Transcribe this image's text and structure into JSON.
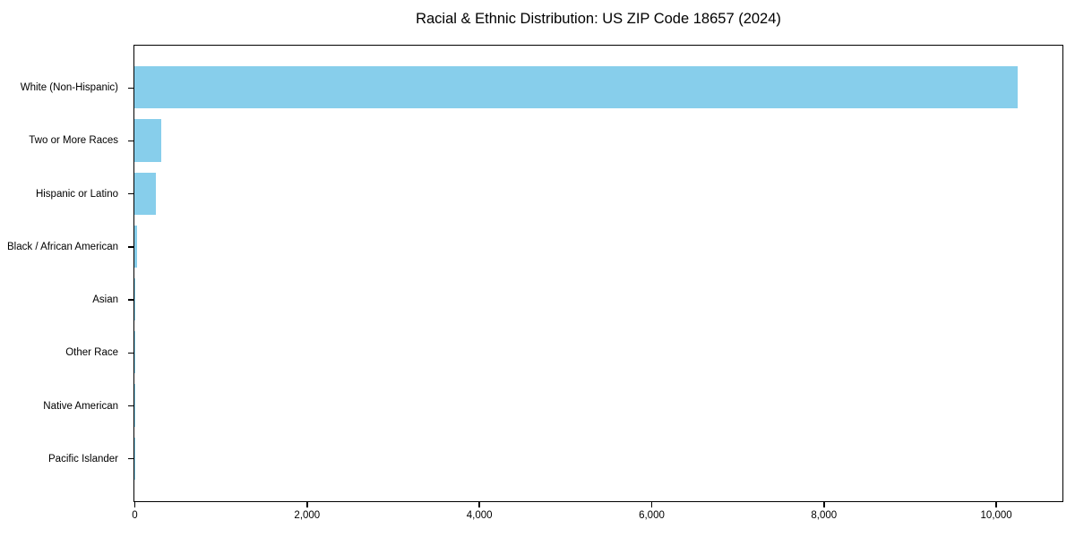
{
  "chart_data": {
    "type": "bar",
    "orientation": "horizontal",
    "title": "Racial & Ethnic Distribution: US ZIP Code 18657 (2024)",
    "categories": [
      "White (Non-Hispanic)",
      "Two or More Races",
      "Hispanic or Latino",
      "Black / African American",
      "Asian",
      "Other Race",
      "Native American",
      "Pacific Islander"
    ],
    "values": [
      10250,
      310,
      245,
      35,
      10,
      8,
      4,
      2
    ],
    "xlabel": "",
    "ylabel": "",
    "xlim": [
      0,
      10763
    ],
    "xticks": [
      0,
      2000,
      4000,
      6000,
      8000,
      10000
    ],
    "xtick_labels": [
      "0",
      "2,000",
      "4,000",
      "6,000",
      "8,000",
      "10,000"
    ],
    "bar_color": "#87CEEB",
    "frame_color": "#000000",
    "grid": false,
    "legend": null
  }
}
